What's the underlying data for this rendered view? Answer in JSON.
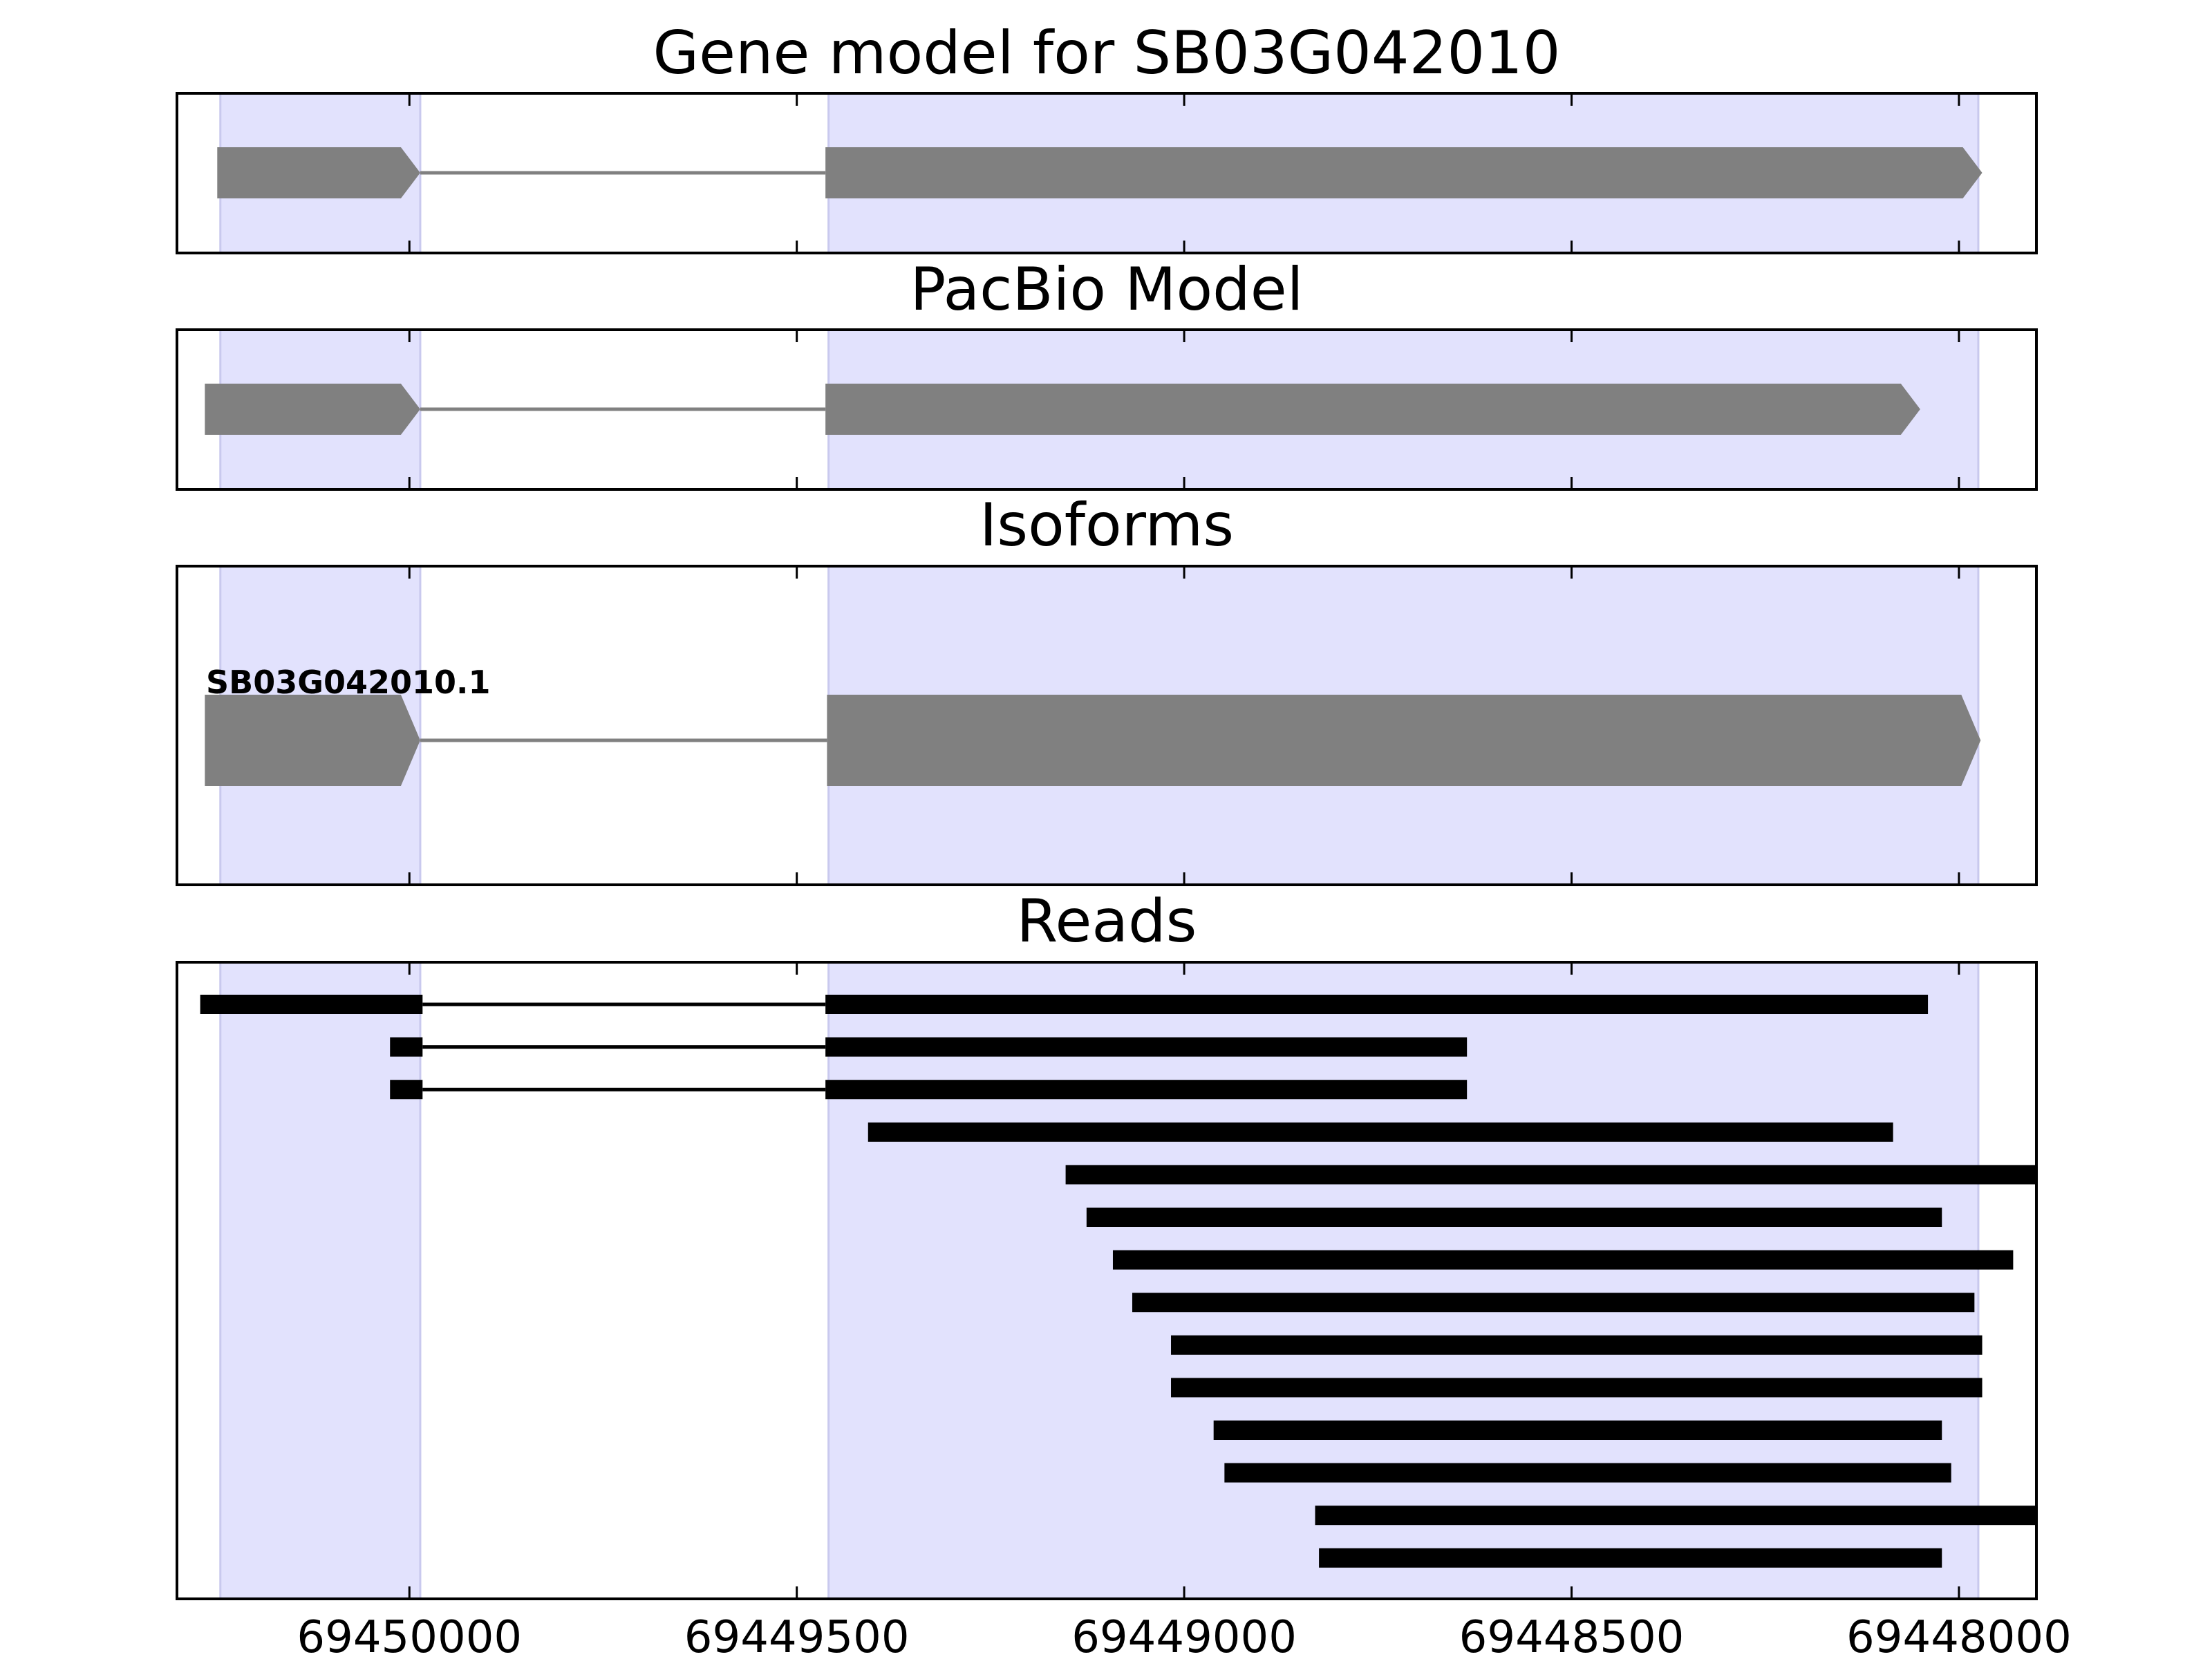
{
  "colors": {
    "exon_fill": "#808080",
    "intron_line": "#808080",
    "read_fill": "#000000",
    "highlight": "#e2e2fd",
    "highlight_edge": "#c9c9ee",
    "axis": "#000000"
  },
  "chart_data": {
    "type": "gene-model",
    "x_axis": {
      "range": [
        69450300,
        69447900
      ],
      "direction": "reversed",
      "ticks": [
        69450000,
        69449500,
        69449000,
        69448500,
        69448000
      ],
      "tick_labels": [
        "69450000",
        "69449500",
        "69449000",
        "69448500",
        "69448000"
      ]
    },
    "highlight_regions": [
      [
        69450244,
        69449986
      ],
      [
        69449459,
        69447975
      ]
    ],
    "panels": [
      {
        "title": "Gene model for SB03G042010",
        "kind": "model",
        "exons": [
          [
            69450248,
            69449986
          ],
          [
            69449463,
            69447970
          ]
        ],
        "strand": "-"
      },
      {
        "title": "PacBio Model",
        "kind": "model",
        "exons": [
          [
            69450264,
            69449986
          ],
          [
            69449463,
            69448050
          ]
        ],
        "strand": "-"
      },
      {
        "title": "Isoforms",
        "kind": "isoforms",
        "isoforms": [
          {
            "label": "SB03G042010.1",
            "exons": [
              [
                69450264,
                69449986
              ],
              [
                69449461,
                69447972
              ]
            ],
            "strand": "-"
          }
        ]
      },
      {
        "title": "Reads",
        "kind": "reads",
        "reads": [
          [
            [
              69450270,
              69449983
            ],
            [
              69449463,
              69448040
            ]
          ],
          [
            [
              69450025,
              69449983
            ],
            [
              69449463,
              69448635
            ]
          ],
          [
            [
              69450025,
              69449983
            ],
            [
              69449463,
              69448635
            ]
          ],
          [
            [
              69449408,
              69448085
            ]
          ],
          [
            [
              69449153,
              69447900
            ]
          ],
          [
            [
              69449126,
              69448022
            ]
          ],
          [
            [
              69449092,
              69447930
            ]
          ],
          [
            [
              69449067,
              69447980
            ]
          ],
          [
            [
              69449017,
              69447970
            ]
          ],
          [
            [
              69449017,
              69447970
            ]
          ],
          [
            [
              69448962,
              69448022
            ]
          ],
          [
            [
              69448948,
              69448010
            ]
          ],
          [
            [
              69448831,
              69447900
            ]
          ],
          [
            [
              69448826,
              69448022
            ]
          ]
        ]
      }
    ]
  }
}
